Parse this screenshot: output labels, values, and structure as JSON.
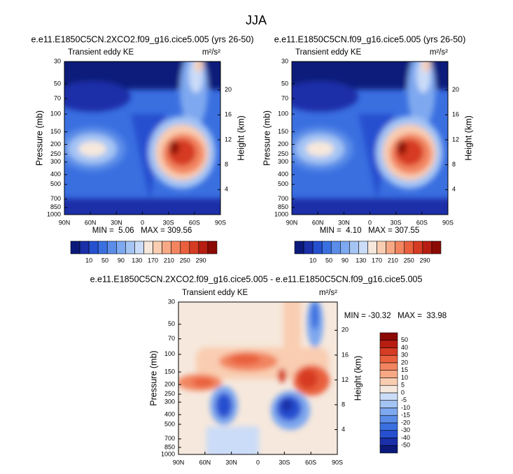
{
  "title": "JJA",
  "panels": [
    {
      "title": "e.e11.E1850C5CN.2XCO2.f09_g16.cice5.005 (yrs 26-50)",
      "left_label": "Transient eddy KE",
      "units": "m²/s²",
      "y_label": "Pressure (mb)",
      "y2_label": "Height (km)",
      "xticks": [
        "90N",
        "60N",
        "30N",
        "0",
        "30S",
        "60S",
        "90S"
      ],
      "ylim": [
        1000,
        30
      ],
      "yticks": [
        30,
        50,
        70,
        100,
        150,
        200,
        250,
        300,
        400,
        500,
        700,
        850,
        1000
      ],
      "y2ticks": [
        4,
        8,
        12,
        16,
        20
      ],
      "log": true,
      "stats": "MIN =  5.06   MAX = 309.56"
    },
    {
      "title": "e.e11.E1850C5CN.f09_g16.cice5.005 (yrs 26-50)",
      "left_label": "Transient eddy KE",
      "units": "m²/s²",
      "y_label": "Pressure (mb)",
      "y2_label": "Height (km)",
      "xticks": [
        "90N",
        "60N",
        "30N",
        "0",
        "30S",
        "60S",
        "90S"
      ],
      "ylim": [
        1000,
        30
      ],
      "yticks": [
        30,
        50,
        70,
        100,
        150,
        200,
        250,
        300,
        400,
        500,
        700,
        850,
        1000
      ],
      "y2ticks": [
        4,
        8,
        12,
        16,
        20
      ],
      "log": true,
      "stats": "MIN =  4.10   MAX = 307.55"
    },
    {
      "title": "e.e11.E1850C5CN.2XCO2.f09_g16.cice5.005 - e.e11.E1850C5CN.f09_g16.cice5.005",
      "left_label": "Transient eddy KE",
      "units": "m²/s²",
      "y_label": "Pressure (mb)",
      "y2_label": "Height (km)",
      "xticks": [
        "90N",
        "60N",
        "30N",
        "0",
        "30S",
        "60S",
        "90S"
      ],
      "ylim": [
        1000,
        30
      ],
      "yticks": [
        30,
        50,
        70,
        100,
        150,
        200,
        250,
        300,
        400,
        500,
        700,
        850,
        1000
      ],
      "y2ticks": [
        4,
        8,
        12,
        16,
        20
      ],
      "log": true,
      "stats": "MIN = -30.32   MAX =  33.98"
    }
  ],
  "colorbars": [
    {
      "ticks": [
        10,
        50,
        90,
        130,
        170,
        210,
        250,
        290
      ],
      "colors": [
        "#0b1a7a",
        "#1a2fa8",
        "#2650d0",
        "#3a6fe0",
        "#5a8ce8",
        "#7ea8ef",
        "#a4c4f4",
        "#cbdcf8",
        "#f6e8dc",
        "#f9cdb1",
        "#f7a985",
        "#f28560",
        "#e9603e",
        "#d63b23",
        "#b81d12",
        "#8c0a06"
      ]
    },
    {
      "ticks": [
        10,
        50,
        90,
        130,
        170,
        210,
        250,
        290
      ],
      "colors": [
        "#0b1a7a",
        "#1a2fa8",
        "#2650d0",
        "#3a6fe0",
        "#5a8ce8",
        "#7ea8ef",
        "#a4c4f4",
        "#cbdcf8",
        "#f6e8dc",
        "#f9cdb1",
        "#f7a985",
        "#f28560",
        "#e9603e",
        "#d63b23",
        "#b81d12",
        "#8c0a06"
      ]
    },
    {
      "ticks": [
        50,
        40,
        30,
        20,
        15,
        10,
        5,
        0,
        -5,
        -10,
        -15,
        -20,
        -30,
        -40,
        -50
      ],
      "colors": [
        "#8c0a06",
        "#b81d12",
        "#d63b23",
        "#e9603e",
        "#f28560",
        "#f7a985",
        "#f9cdb1",
        "#f6e8dc",
        "#cbdcf8",
        "#a4c4f4",
        "#7ea8ef",
        "#5a8ce8",
        "#3a6fe0",
        "#2650d0",
        "#1a2fa8",
        "#0b1a7a"
      ]
    }
  ]
}
